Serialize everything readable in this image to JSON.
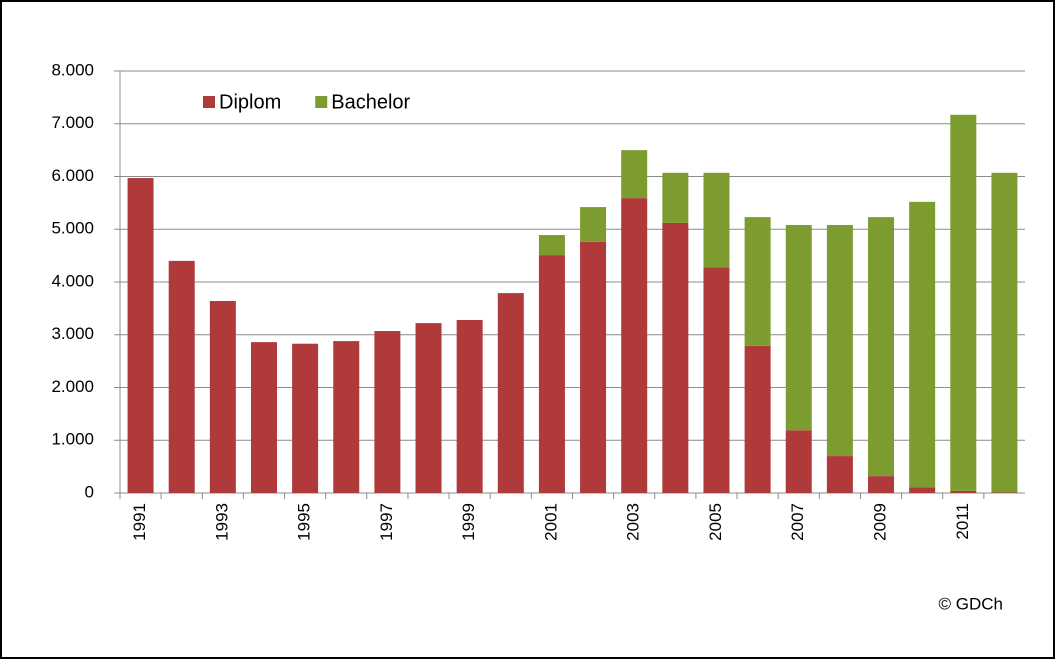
{
  "chart_data": {
    "type": "stacked_bar",
    "categories": [
      "1991",
      null,
      "1993",
      null,
      "1995",
      null,
      "1997",
      null,
      "1999",
      null,
      "2001",
      null,
      "2003",
      null,
      "2005",
      null,
      "2007",
      null,
      "2009",
      null,
      "2011",
      null
    ],
    "series": [
      {
        "name": "Diplom",
        "color": "#b0393a",
        "values": [
          5970,
          4400,
          3640,
          2860,
          2830,
          2880,
          3070,
          3220,
          3280,
          3790,
          4510,
          4760,
          5590,
          5120,
          4280,
          2790,
          1190,
          700,
          320,
          110,
          40,
          10
        ]
      },
      {
        "name": "Bachelor",
        "color": "#7d9c2f",
        "values": [
          0,
          0,
          0,
          0,
          0,
          0,
          0,
          0,
          0,
          0,
          380,
          660,
          910,
          950,
          1790,
          2440,
          3890,
          4380,
          4910,
          5410,
          7130,
          6060
        ]
      }
    ],
    "ylim": [
      0,
      8000
    ],
    "yticks": [
      0,
      {
        "value": 1000,
        "label": "1.000"
      },
      {
        "value": 2000,
        "label": "2.000"
      },
      {
        "value": 3000,
        "label": "3.000"
      },
      {
        "value": 4000,
        "label": "4.000"
      },
      {
        "value": 5000,
        "label": "5.000"
      },
      {
        "value": 6000,
        "label": "6.000"
      },
      {
        "value": 7000,
        "label": "7.000"
      },
      {
        "value": 8000,
        "label": "8.000"
      }
    ],
    "grid": true,
    "legend": "top-left",
    "annotation": "© GDCh"
  }
}
